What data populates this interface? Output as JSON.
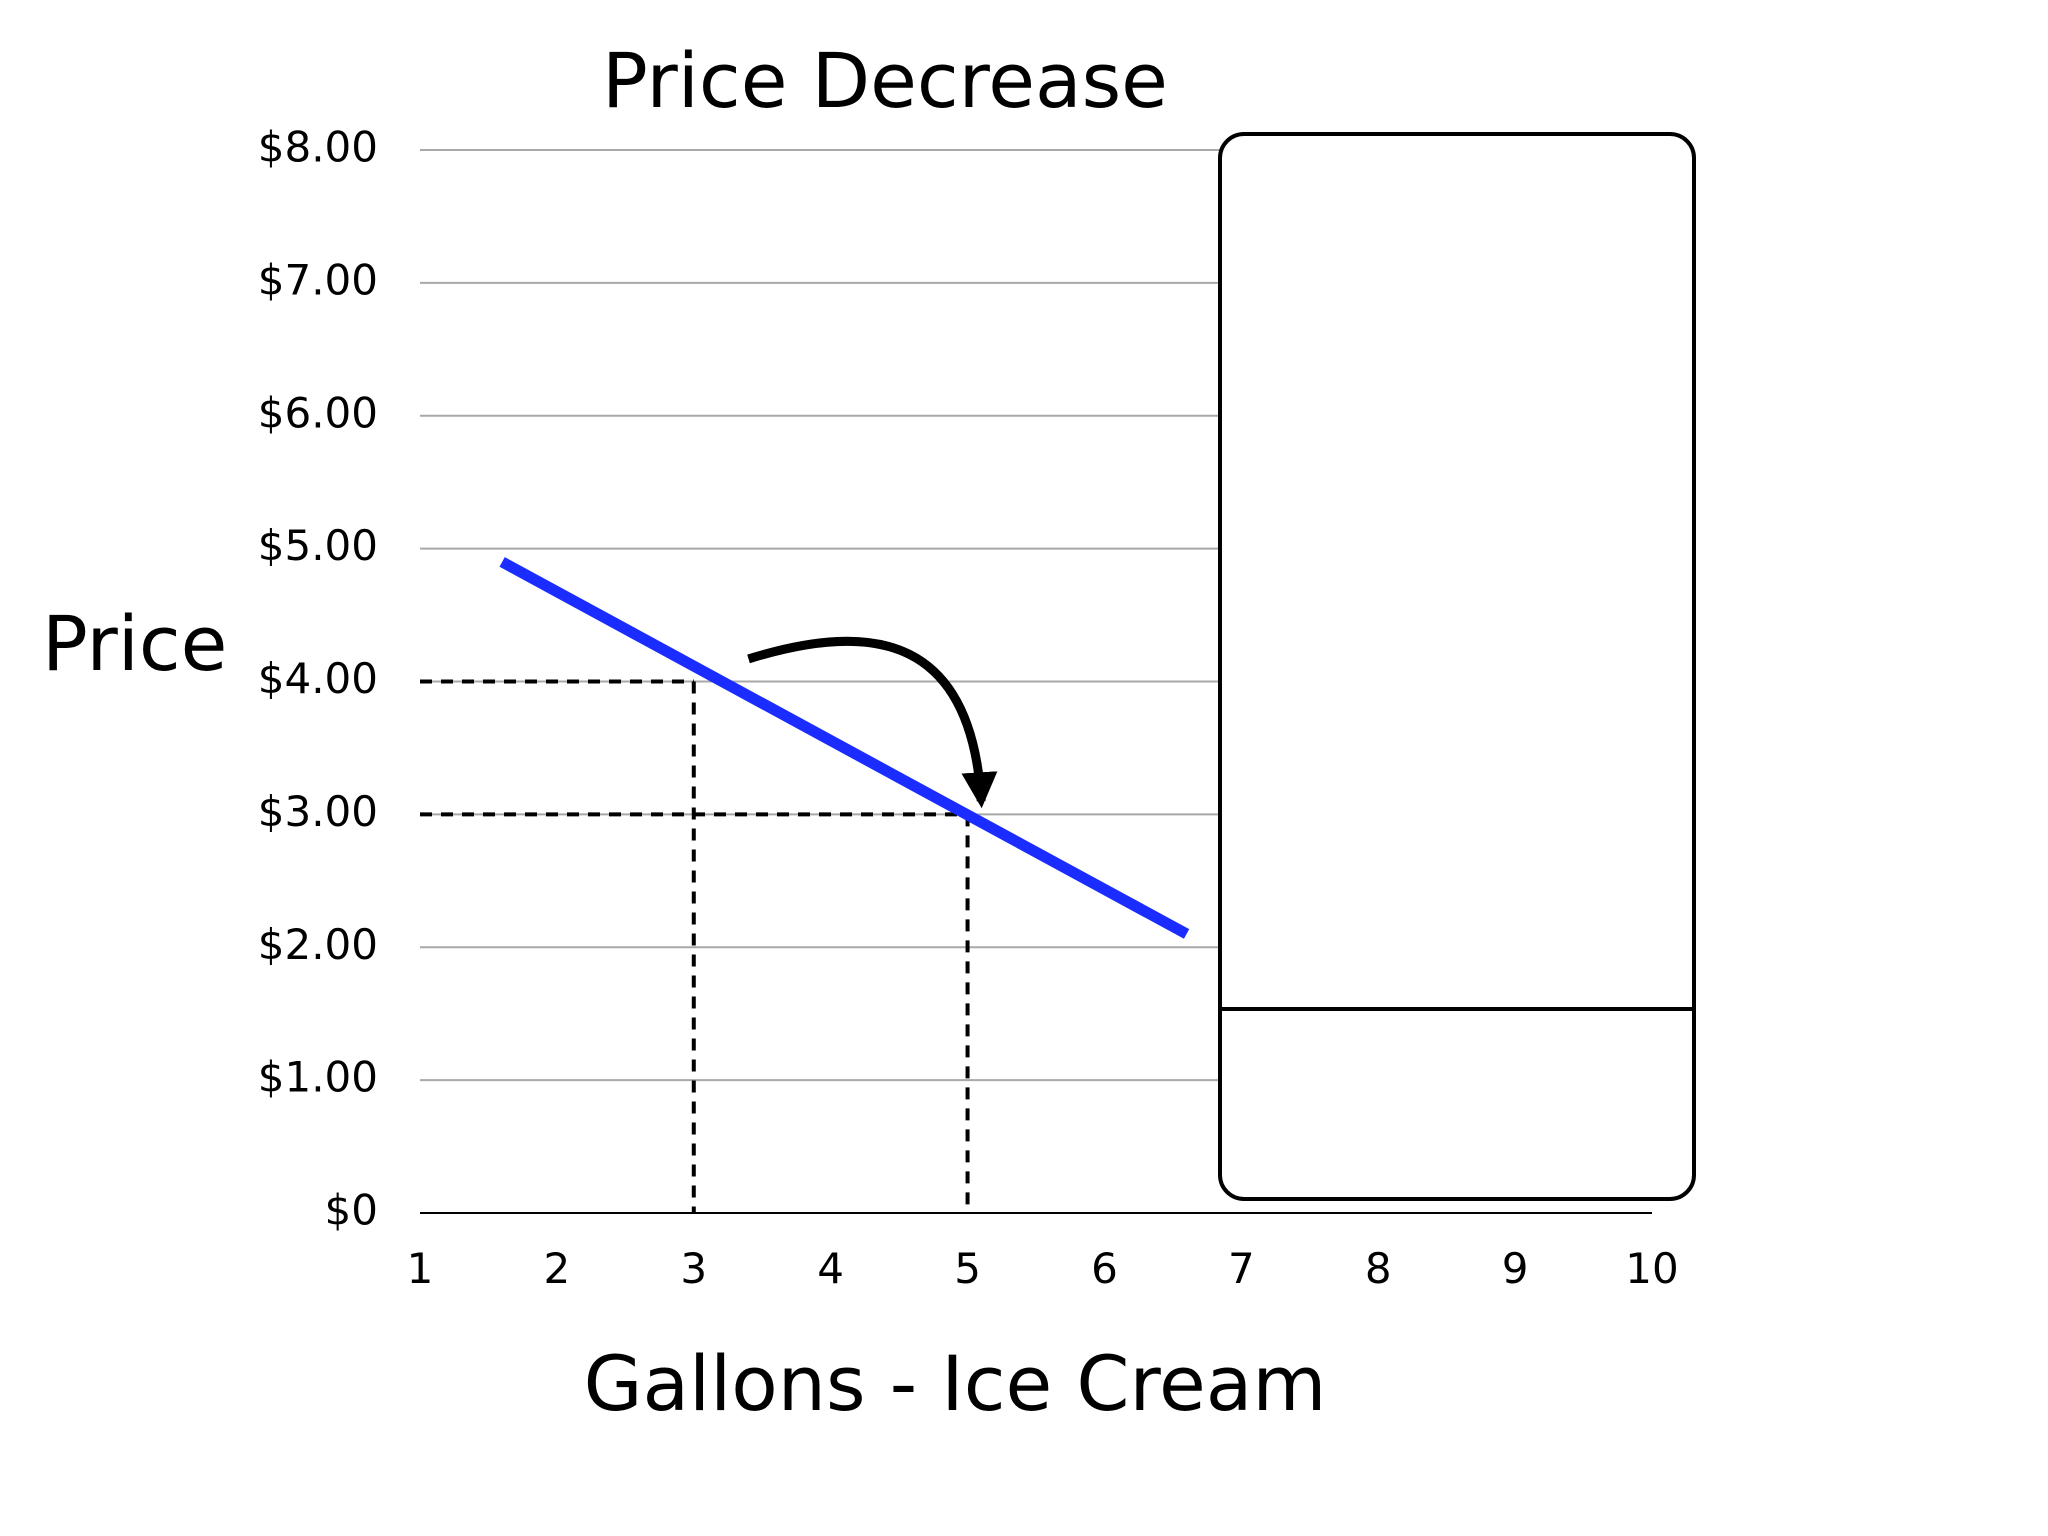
{
  "chart_data": {
    "type": "line",
    "title": "Price Decrease",
    "xlabel": "Gallons - Ice Cream",
    "ylabel": "Price",
    "x_ticks": [
      "1",
      "2",
      "3",
      "4",
      "5",
      "6",
      "7",
      "8",
      "9",
      "10"
    ],
    "y_ticks": [
      "$0",
      "$1.00",
      "$2.00",
      "$3.00",
      "$4.00",
      "$5.00",
      "$6.00",
      "$7.00",
      "$8.00"
    ],
    "xlim": [
      1,
      10
    ],
    "ylim": [
      0,
      8
    ],
    "grid": "horizontal",
    "series": [
      {
        "color": "#1a2cff",
        "points": [
          {
            "x": 1.6,
            "y": 4.9
          },
          {
            "x": 6.6,
            "y": 2.1
          }
        ]
      }
    ],
    "reference_points": [
      {
        "x": 3,
        "y": 4.0
      },
      {
        "x": 5,
        "y": 3.0
      }
    ],
    "annotation": {
      "type": "curved-arrow",
      "from": {
        "x": 3.4,
        "y": 4.17
      },
      "to": {
        "x": 5.1,
        "y": 3.1
      }
    },
    "legend_box": "right"
  }
}
